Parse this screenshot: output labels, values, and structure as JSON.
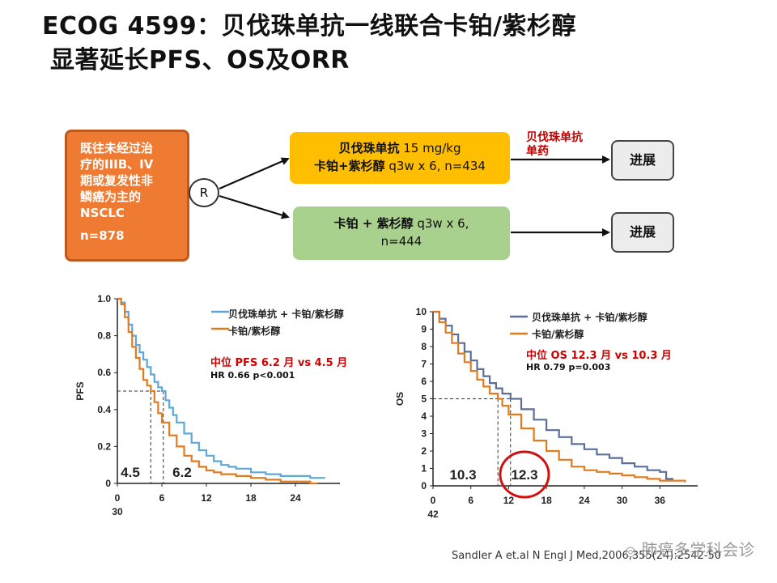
{
  "title": {
    "line1": "ECOG 4599：贝伐珠单抗一线联合卡铂/紫杉醇",
    "line2": "显著延长PFS、OS及ORR"
  },
  "design": {
    "population": [
      "既往未经过治",
      "疗的IIIB、IV",
      "期或复发性非",
      "鳞癌为主的",
      "NSCLC"
    ],
    "population_n": "n=878",
    "randomize": "R",
    "arm_a_line1_bold": "贝伐珠单抗",
    "arm_a_line1_rest": " 15 mg/kg",
    "arm_a_line2_bold": "卡铂+紫杉醇",
    "arm_a_line2_rest": " q3w x 6, n=434",
    "arm_b_line1_bold": "卡铂 + 紫杉醇",
    "arm_b_line1_rest": " q3w x 6,",
    "arm_b_line2": "n=444",
    "maintenance_line1": "贝伐珠单抗",
    "maintenance_line2": "单药",
    "progression_a": "进展",
    "progression_b": "进展"
  },
  "colors": {
    "bev_series": "#5ea7d6",
    "chemo_series": "#e07b20",
    "os_bev_series": "#5a6f9a",
    "highlight_red": "#d00000",
    "population_box": "#ee7b31",
    "arm_a_box": "#ffbf00",
    "arm_b_box": "#a9d18e"
  },
  "pfs_annot": {
    "legend1": "贝伐珠单抗 + 卡铂/紫杉醇",
    "legend2": "卡铂/紫杉醇",
    "median": "中位 PFS 6.2 月 vs 4.5 月",
    "hr": "HR 0.66 p<0.001",
    "median_chemo": "4.5",
    "median_bev": "6.2"
  },
  "os_annot": {
    "legend1": "贝伐珠单抗 + 卡铂/紫杉醇",
    "legend2": "卡铂/紫杉醇",
    "median": "中位 OS 12.3 月 vs 10.3 月",
    "hr": "HR 0.79 p=0.003",
    "median_chemo": "10.3",
    "median_bev": "12.3"
  },
  "chart_data": [
    {
      "type": "line",
      "ylabel": "PFS",
      "ylim": [
        0,
        1.0
      ],
      "yticks": [
        "0",
        "0.2",
        "0.4",
        "0.6",
        "0.8",
        "1.0"
      ],
      "xlim": [
        0,
        30
      ],
      "xticks": [
        "0",
        "6",
        "12",
        "18",
        "24",
        "30"
      ],
      "grid": false,
      "legend_position": "top-right",
      "series": [
        {
          "name": "贝伐珠单抗 + 卡铂/紫杉醇",
          "x": [
            0,
            0.5,
            1,
            1.5,
            2,
            2.5,
            3,
            3.5,
            4,
            4.5,
            5,
            5.5,
            6,
            6.5,
            7,
            7.5,
            8,
            9,
            10,
            11,
            12,
            13,
            14,
            15,
            16,
            18,
            20,
            22,
            24,
            26,
            28
          ],
          "y": [
            1.0,
            0.98,
            0.93,
            0.86,
            0.8,
            0.75,
            0.71,
            0.67,
            0.63,
            0.59,
            0.55,
            0.52,
            0.5,
            0.45,
            0.41,
            0.37,
            0.33,
            0.27,
            0.22,
            0.18,
            0.15,
            0.12,
            0.1,
            0.09,
            0.08,
            0.06,
            0.05,
            0.04,
            0.04,
            0.03,
            0.03
          ]
        },
        {
          "name": "卡铂/紫杉醇",
          "x": [
            0,
            0.5,
            1,
            1.5,
            2,
            2.5,
            3,
            3.5,
            4,
            4.5,
            5,
            5.5,
            6,
            7,
            8,
            9,
            10,
            11,
            12,
            13,
            14,
            16,
            18,
            20,
            22,
            24,
            26,
            27
          ],
          "y": [
            1.0,
            0.97,
            0.9,
            0.82,
            0.74,
            0.68,
            0.62,
            0.56,
            0.53,
            0.5,
            0.44,
            0.38,
            0.33,
            0.26,
            0.2,
            0.15,
            0.12,
            0.09,
            0.07,
            0.06,
            0.05,
            0.04,
            0.03,
            0.02,
            0.01,
            0.01,
            0.0,
            0.0
          ]
        }
      ]
    },
    {
      "type": "line",
      "ylabel": "OS",
      "ylim": [
        0,
        10
      ],
      "yticks": [
        "0",
        "1",
        "2",
        "3",
        "4",
        "5",
        "6",
        "7",
        "8",
        "9",
        "10"
      ],
      "xlim": [
        0,
        42
      ],
      "xticks": [
        "0",
        "6",
        "12",
        "18",
        "24",
        "30",
        "36",
        "42"
      ],
      "grid": false,
      "legend_position": "top-right",
      "series": [
        {
          "name": "贝伐珠单抗 + 卡铂/紫杉醇",
          "x": [
            0,
            1,
            2,
            3,
            4,
            5,
            6,
            7,
            8,
            9,
            10,
            11,
            12.3,
            14,
            16,
            18,
            20,
            22,
            24,
            26,
            28,
            30,
            32,
            34,
            36,
            37,
            38
          ],
          "y": [
            10,
            9.6,
            9.2,
            8.7,
            8.2,
            7.7,
            7.2,
            6.7,
            6.3,
            5.9,
            5.6,
            5.3,
            5.0,
            4.4,
            3.8,
            3.2,
            2.8,
            2.4,
            2.1,
            1.8,
            1.6,
            1.3,
            1.1,
            0.9,
            0.8,
            0.4,
            0.3
          ]
        },
        {
          "name": "卡铂/紫杉醇",
          "x": [
            0,
            1,
            2,
            3,
            4,
            5,
            6,
            7,
            8,
            9,
            10.3,
            11,
            12,
            14,
            16,
            18,
            20,
            22,
            24,
            26,
            28,
            30,
            32,
            34,
            36,
            38,
            40
          ],
          "y": [
            10,
            9.4,
            8.8,
            8.2,
            7.6,
            7.1,
            6.6,
            6.1,
            5.7,
            5.3,
            5.0,
            4.6,
            4.1,
            3.3,
            2.6,
            2.0,
            1.5,
            1.1,
            0.9,
            0.8,
            0.7,
            0.6,
            0.5,
            0.4,
            0.3,
            0.3,
            0.2
          ]
        }
      ]
    }
  ],
  "citation": "Sandler A et.al N Engl J Med,2006,355(24):2542-50",
  "watermark": "肺癌多学科会诊"
}
